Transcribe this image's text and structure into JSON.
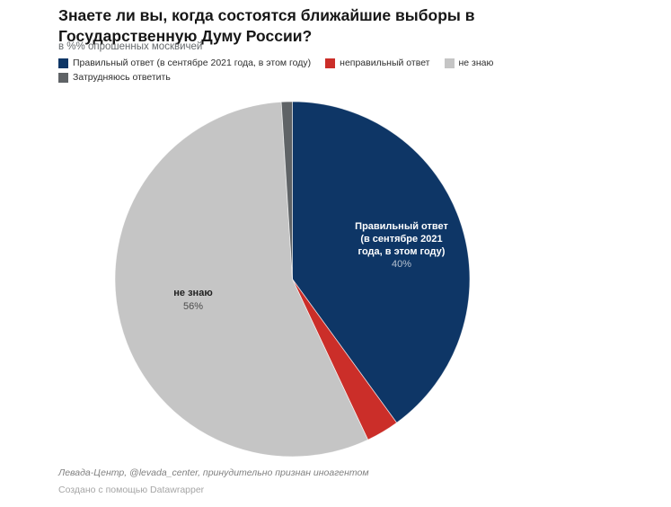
{
  "header": {
    "title": "Знаете ли вы, когда состоятся ближайшие выборы в Государственную Думу России?",
    "subtitle": "в %% опрошенных москвичей"
  },
  "chart_data": {
    "type": "pie",
    "title": "Знаете ли вы, когда состоятся ближайшие выборы в Государственную Думу России?",
    "subtitle": "в %% опрошенных москвичей",
    "units": "% опрошенных москвичей",
    "direction": "clockwise",
    "start_angle_deg": 0,
    "legend_position": "top",
    "slices": [
      {
        "label": "Правильный ответ (в сентябре 2021 года, в этом году)",
        "value": 40,
        "color": "#0e3666"
      },
      {
        "label": "неправильный ответ",
        "value": 3,
        "color": "#cb2e29"
      },
      {
        "label": "не знаю",
        "value": 56,
        "color": "#c5c5c5"
      },
      {
        "label": "Затрудняюсь ответить",
        "value": 1,
        "color": "#5f6366"
      }
    ]
  },
  "pie_labels": {
    "correct": {
      "text": "Правильный ответ\n(в сентябре 2021\nгода, в этом году)",
      "pct": "40%"
    },
    "dont_know": {
      "text": "не знаю",
      "pct": "56%"
    }
  },
  "footer": {
    "source": "Левада-Центр, @levada_center, принудительно признан иноагентом",
    "attribution": "Создано с помощью Datawrapper"
  }
}
